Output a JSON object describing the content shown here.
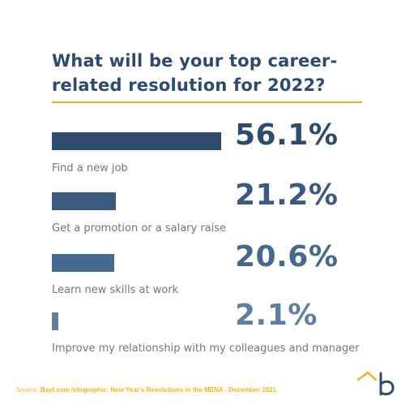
{
  "title": "What will be your top career-related resolution for 2022?",
  "chart_data": {
    "type": "bar",
    "orientation": "horizontal",
    "title": "What will be your top career-related resolution for 2022?",
    "categories": [
      "Find a new job",
      "Get a promotion or a salary raise",
      "Learn new skills at work",
      "Improve my relationship with my colleagues and manager"
    ],
    "values": [
      56.1,
      21.2,
      20.6,
      2.1
    ],
    "value_labels": [
      "56.1%",
      "21.2%",
      "20.6%",
      "2.1%"
    ],
    "xlim": [
      0,
      56.1
    ],
    "grid": false,
    "colors": {
      "bars": [
        "#2e4a6e",
        "#3a5a80",
        "#46698f",
        "#5f7ea0"
      ],
      "values": [
        "#2e4a6e",
        "#3a5a80",
        "#46698f",
        "#5f7ea0"
      ],
      "accent": "#f2b21b"
    }
  },
  "source": {
    "prefix": "Source:",
    "text": "Bayt.com Infographic: New Year's Resolutions in the MENA - December 2021"
  },
  "logo": {
    "icon": "bayt-logo-icon",
    "color": "#2e4a6e",
    "accent": "#f2b21b"
  }
}
